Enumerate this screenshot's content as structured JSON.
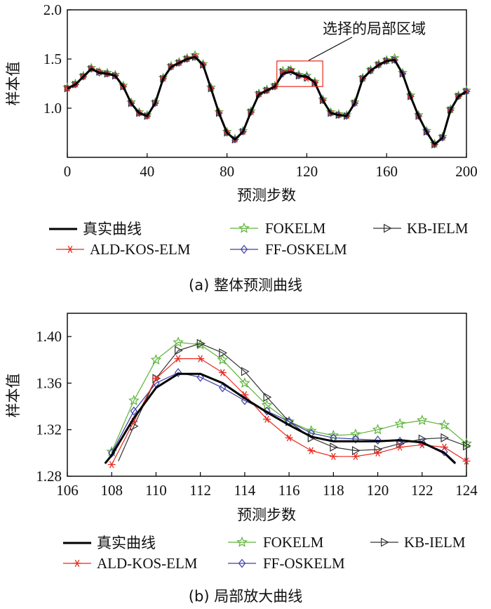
{
  "colors": {
    "truth": "#000000",
    "ald": "#e8291f",
    "fokelm": "#5db33a",
    "ffos": "#3f3fa8",
    "kb": "#333333",
    "box": "#e8291f"
  },
  "chart_data": [
    {
      "type": "line",
      "caption": "(a) 整体预测曲线",
      "xlabel": "预测步数",
      "ylabel": "样本值",
      "xlim": [
        0,
        200
      ],
      "ylim": [
        0.5,
        2.0
      ],
      "xticks": [
        "0",
        "40",
        "80",
        "120",
        "160",
        "200"
      ],
      "yticks": [
        "1.0",
        "1.5",
        "2.0"
      ],
      "annotation": "选择的局部区域",
      "highlight_box": {
        "x": [
          105,
          128
        ],
        "y": [
          1.22,
          1.48
        ]
      },
      "legend": [
        "真实曲线",
        "FOKELM",
        "KB-IELM",
        "ALD-KOS-ELM",
        "FF-OSKELM"
      ],
      "x": [
        0,
        4,
        8,
        12,
        16,
        20,
        24,
        28,
        32,
        36,
        40,
        44,
        48,
        52,
        56,
        60,
        64,
        68,
        72,
        76,
        80,
        84,
        88,
        92,
        96,
        100,
        104,
        108,
        112,
        116,
        120,
        124,
        128,
        132,
        136,
        140,
        144,
        148,
        152,
        156,
        160,
        164,
        168,
        172,
        176,
        180,
        184,
        188,
        192,
        196,
        200
      ],
      "series": [
        {
          "name": "真实曲线",
          "values": [
            1.2,
            1.24,
            1.32,
            1.4,
            1.36,
            1.35,
            1.33,
            1.22,
            1.05,
            0.95,
            0.92,
            1.05,
            1.3,
            1.42,
            1.46,
            1.5,
            1.52,
            1.44,
            1.2,
            0.95,
            0.75,
            0.68,
            0.76,
            0.96,
            1.14,
            1.18,
            1.22,
            1.35,
            1.37,
            1.33,
            1.32,
            1.26,
            1.08,
            0.95,
            0.93,
            0.92,
            1.05,
            1.3,
            1.38,
            1.44,
            1.48,
            1.49,
            1.35,
            1.12,
            0.92,
            0.76,
            0.63,
            0.7,
            0.98,
            1.12,
            1.17
          ]
        },
        {
          "name": "ALD-KOS-ELM",
          "values": [
            1.2,
            1.24,
            1.32,
            1.4,
            1.37,
            1.35,
            1.33,
            1.22,
            1.05,
            0.95,
            0.92,
            1.05,
            1.3,
            1.42,
            1.46,
            1.5,
            1.53,
            1.44,
            1.2,
            0.95,
            0.75,
            0.68,
            0.76,
            0.96,
            1.14,
            1.18,
            1.22,
            1.36,
            1.38,
            1.33,
            1.3,
            1.26,
            1.08,
            0.95,
            0.93,
            0.92,
            1.05,
            1.3,
            1.38,
            1.44,
            1.48,
            1.49,
            1.35,
            1.12,
            0.92,
            0.76,
            0.63,
            0.7,
            0.98,
            1.12,
            1.17
          ]
        },
        {
          "name": "FOKELM",
          "values": [
            1.21,
            1.25,
            1.33,
            1.41,
            1.37,
            1.36,
            1.34,
            1.23,
            1.06,
            0.96,
            0.93,
            1.06,
            1.31,
            1.43,
            1.47,
            1.51,
            1.54,
            1.45,
            1.21,
            0.96,
            0.76,
            0.69,
            0.77,
            0.97,
            1.15,
            1.19,
            1.23,
            1.38,
            1.39,
            1.34,
            1.33,
            1.27,
            1.09,
            0.96,
            0.94,
            0.93,
            1.06,
            1.31,
            1.39,
            1.45,
            1.49,
            1.51,
            1.36,
            1.13,
            0.93,
            0.77,
            0.64,
            0.71,
            0.99,
            1.13,
            1.18
          ]
        },
        {
          "name": "FF-OSKELM",
          "values": [
            1.2,
            1.24,
            1.32,
            1.4,
            1.36,
            1.35,
            1.33,
            1.22,
            1.05,
            0.95,
            0.92,
            1.05,
            1.3,
            1.42,
            1.46,
            1.5,
            1.52,
            1.44,
            1.2,
            0.95,
            0.75,
            0.68,
            0.76,
            0.96,
            1.14,
            1.18,
            1.22,
            1.35,
            1.37,
            1.33,
            1.32,
            1.26,
            1.08,
            0.95,
            0.93,
            0.92,
            1.05,
            1.3,
            1.38,
            1.44,
            1.48,
            1.49,
            1.35,
            1.12,
            0.92,
            0.76,
            0.63,
            0.7,
            0.98,
            1.12,
            1.17
          ]
        },
        {
          "name": "KB-IELM",
          "values": [
            1.2,
            1.24,
            1.32,
            1.4,
            1.37,
            1.35,
            1.33,
            1.22,
            1.05,
            0.95,
            0.92,
            1.05,
            1.3,
            1.42,
            1.46,
            1.5,
            1.52,
            1.44,
            1.2,
            0.95,
            0.75,
            0.68,
            0.76,
            0.96,
            1.14,
            1.18,
            1.22,
            1.37,
            1.39,
            1.33,
            1.31,
            1.26,
            1.08,
            0.95,
            0.93,
            0.92,
            1.05,
            1.3,
            1.38,
            1.44,
            1.48,
            1.49,
            1.35,
            1.12,
            0.92,
            0.76,
            0.63,
            0.7,
            0.98,
            1.12,
            1.17
          ]
        }
      ]
    },
    {
      "type": "line",
      "caption": "(b) 局部放大曲线",
      "xlabel": "预测步数",
      "ylabel": "样本值",
      "xlim": [
        106,
        124
      ],
      "ylim": [
        1.28,
        1.42
      ],
      "xticks": [
        "106",
        "108",
        "110",
        "112",
        "114",
        "116",
        "118",
        "120",
        "122",
        "124"
      ],
      "yticks": [
        "1.28",
        "1.32",
        "1.36",
        "1.40"
      ],
      "legend": [
        "真实曲线",
        "FOKELM",
        "KB-IELM",
        "ALD-KOS-ELM",
        "FF-OSKELM"
      ],
      "series": [
        {
          "name": "真实曲线",
          "x": [
            107.7,
            108,
            109,
            110,
            111,
            112,
            113,
            114,
            115,
            116,
            117,
            118,
            119,
            120,
            121,
            122,
            123,
            123.5
          ],
          "values": [
            1.291,
            1.298,
            1.33,
            1.356,
            1.368,
            1.368,
            1.36,
            1.347,
            1.335,
            1.324,
            1.314,
            1.31,
            1.31,
            1.31,
            1.311,
            1.309,
            1.3,
            1.291
          ]
        },
        {
          "name": "ALD-KOS-ELM",
          "x": [
            108,
            109,
            110,
            111,
            112,
            113,
            114,
            115,
            116,
            117,
            118,
            119,
            120,
            121,
            122,
            123,
            124
          ],
          "values": [
            1.29,
            1.327,
            1.364,
            1.381,
            1.381,
            1.369,
            1.35,
            1.329,
            1.313,
            1.302,
            1.297,
            1.297,
            1.3,
            1.305,
            1.307,
            1.305,
            1.293
          ]
        },
        {
          "name": "FOKELM",
          "x": [
            108,
            109,
            110,
            111,
            112,
            113,
            114,
            115,
            116,
            117,
            118,
            119,
            120,
            121,
            122,
            123,
            124
          ],
          "values": [
            1.301,
            1.345,
            1.38,
            1.395,
            1.393,
            1.38,
            1.36,
            1.341,
            1.327,
            1.319,
            1.315,
            1.316,
            1.32,
            1.325,
            1.328,
            1.324,
            1.308
          ]
        },
        {
          "name": "FF-OSKELM",
          "x": [
            108,
            109,
            110,
            111,
            112,
            113,
            114,
            115,
            116,
            117,
            118,
            119,
            120,
            121,
            122,
            123,
            123.5
          ],
          "values": [
            1.3,
            1.336,
            1.36,
            1.369,
            1.365,
            1.356,
            1.345,
            1.336,
            1.327,
            1.317,
            1.313,
            1.312,
            1.311,
            1.31,
            1.309,
            1.301,
            1.292
          ]
        },
        {
          "name": "KB-IELM",
          "x": [
            108.3,
            109,
            110,
            111,
            112,
            113,
            114,
            115,
            116,
            117,
            118,
            119,
            120,
            121,
            122,
            123,
            124
          ],
          "values": [
            1.293,
            1.323,
            1.364,
            1.388,
            1.394,
            1.386,
            1.37,
            1.348,
            1.327,
            1.313,
            1.305,
            1.302,
            1.303,
            1.308,
            1.312,
            1.313,
            1.306
          ]
        }
      ]
    }
  ]
}
